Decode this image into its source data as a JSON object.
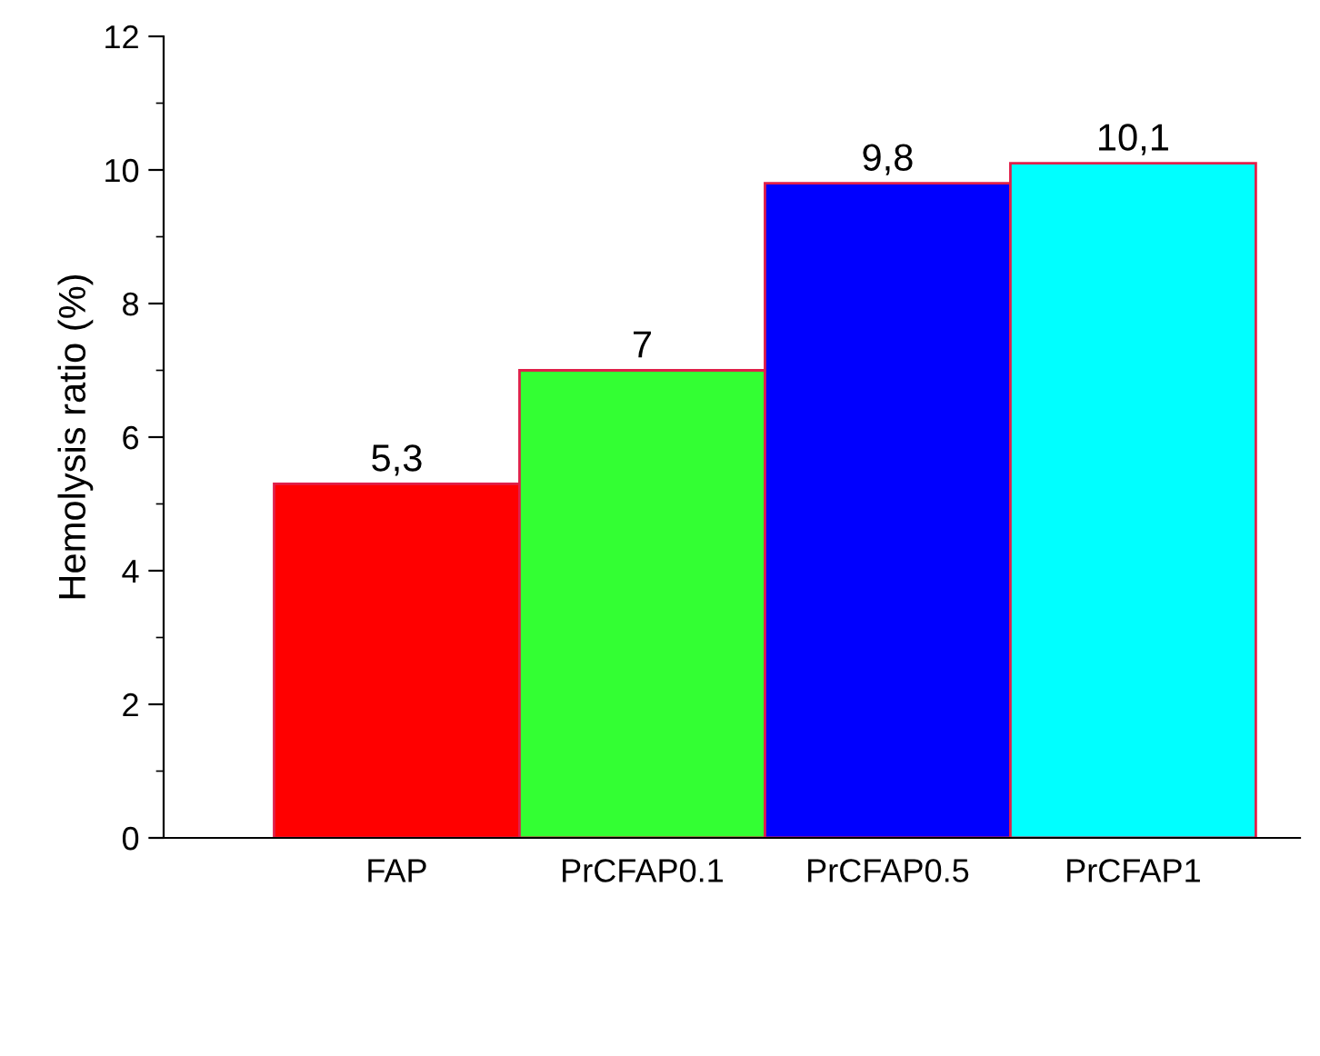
{
  "chart_data": {
    "type": "bar",
    "ylabel": "Hemolysis ratio (%)",
    "categories": [
      "FAP",
      "PrCFAP0.1",
      "PrCFAP0.5",
      "PrCFAP1"
    ],
    "values": [
      5.3,
      7,
      9.8,
      10.1
    ],
    "colors": [
      "#ff0000",
      "#33ff33",
      "#0000ff",
      "#00ffff"
    ],
    "value_labels": [
      "5,3",
      "7",
      "9,8",
      "10,1"
    ],
    "ylim": [
      0,
      12
    ],
    "yticks": [
      0,
      2,
      4,
      6,
      8,
      10,
      12
    ],
    "grid": false,
    "legend": false
  }
}
